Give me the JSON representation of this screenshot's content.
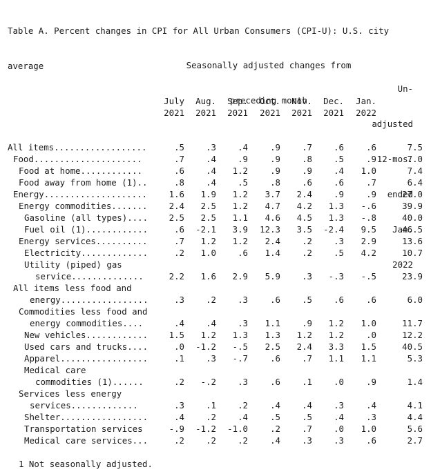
{
  "title_lines": [
    "Table A. Percent changes in CPI for All Urban Consumers (CPI-U): U.S. city",
    "average"
  ],
  "sa_header_lines": [
    "Seasonally adjusted changes from",
    "preceding month"
  ],
  "month_columns": [
    {
      "month": "July",
      "year": "2021"
    },
    {
      "month": "Aug.",
      "year": "2021"
    },
    {
      "month": "Sep.",
      "year": "2021"
    },
    {
      "month": "Oct.",
      "year": "2021"
    },
    {
      "month": "Nov.",
      "year": "2021"
    },
    {
      "month": "Dec.",
      "year": "2021"
    },
    {
      "month": "Jan.",
      "year": "2022"
    }
  ],
  "unadjusted_header_lines": [
    "Un-",
    "adjusted",
    "12-mos.",
    "ended",
    "Jan.",
    "2022"
  ],
  "rows": [
    {
      "label": "All items..................",
      "indent": 0,
      "values": [
        ".5",
        ".3",
        ".4",
        ".9",
        ".7",
        ".6",
        ".6",
        "7.5"
      ]
    },
    {
      "label": "Food.....................",
      "indent": 1,
      "values": [
        ".7",
        ".4",
        ".9",
        ".9",
        ".8",
        ".5",
        ".9",
        "7.0"
      ]
    },
    {
      "label": "Food at home............",
      "indent": 2,
      "values": [
        ".6",
        ".4",
        "1.2",
        ".9",
        ".9",
        ".4",
        "1.0",
        "7.4"
      ]
    },
    {
      "label": "Food away from home (1)..",
      "indent": 2,
      "values": [
        ".8",
        ".4",
        ".5",
        ".8",
        ".6",
        ".6",
        ".7",
        "6.4"
      ]
    },
    {
      "label": "Energy....................",
      "indent": 1,
      "values": [
        "1.6",
        "1.9",
        "1.2",
        "3.7",
        "2.4",
        ".9",
        ".9",
        "27.0"
      ]
    },
    {
      "label": "Energy commodities.......",
      "indent": 2,
      "values": [
        "2.4",
        "2.5",
        "1.2",
        "4.7",
        "4.2",
        "1.3",
        "-.6",
        "39.9"
      ]
    },
    {
      "label": "Gasoline (all types)....",
      "indent": 3,
      "values": [
        "2.5",
        "2.5",
        "1.1",
        "4.6",
        "4.5",
        "1.3",
        "-.8",
        "40.0"
      ]
    },
    {
      "label": "Fuel oil (1)............",
      "indent": 3,
      "values": [
        ".6",
        "-2.1",
        "3.9",
        "12.3",
        "3.5",
        "-2.4",
        "9.5",
        "46.5"
      ]
    },
    {
      "label": "Energy services..........",
      "indent": 2,
      "values": [
        ".7",
        "1.2",
        "1.2",
        "2.4",
        ".2",
        ".3",
        "2.9",
        "13.6"
      ]
    },
    {
      "label": "Electricity.............",
      "indent": 3,
      "values": [
        ".2",
        "1.0",
        ".6",
        "1.4",
        ".2",
        ".5",
        "4.2",
        "10.7"
      ]
    },
    {
      "label": "Utility (piped) gas",
      "indent": 3,
      "values": []
    },
    {
      "label": "service..............",
      "indent": 5,
      "values": [
        "2.2",
        "1.6",
        "2.9",
        "5.9",
        ".3",
        "-.3",
        "-.5",
        "23.9"
      ]
    },
    {
      "label": "All items less food and",
      "indent": 1,
      "values": []
    },
    {
      "label": "energy.................",
      "indent": 4,
      "values": [
        ".3",
        ".2",
        ".3",
        ".6",
        ".5",
        ".6",
        ".6",
        "6.0"
      ]
    },
    {
      "label": "Commodities less food and",
      "indent": 2,
      "values": []
    },
    {
      "label": "energy commodities....",
      "indent": 4,
      "values": [
        ".4",
        ".4",
        ".3",
        "1.1",
        ".9",
        "1.2",
        "1.0",
        "11.7"
      ]
    },
    {
      "label": "New vehicles............",
      "indent": 3,
      "values": [
        "1.5",
        "1.2",
        "1.3",
        "1.3",
        "1.2",
        "1.2",
        ".0",
        "12.2"
      ]
    },
    {
      "label": "Used cars and trucks....",
      "indent": 3,
      "values": [
        ".0",
        "-1.2",
        "-.5",
        "2.5",
        "2.4",
        "3.3",
        "1.5",
        "40.5"
      ]
    },
    {
      "label": "Apparel.................",
      "indent": 3,
      "values": [
        ".1",
        ".3",
        "-.7",
        ".6",
        ".7",
        "1.1",
        "1.1",
        "5.3"
      ]
    },
    {
      "label": "Medical care",
      "indent": 3,
      "values": []
    },
    {
      "label": "commodities (1)......",
      "indent": 5,
      "values": [
        ".2",
        "-.2",
        ".3",
        ".6",
        ".1",
        ".0",
        ".9",
        "1.4"
      ]
    },
    {
      "label": "Services less energy",
      "indent": 2,
      "values": []
    },
    {
      "label": "services.............",
      "indent": 4,
      "values": [
        ".3",
        ".1",
        ".2",
        ".4",
        ".4",
        ".3",
        ".4",
        "4.1"
      ]
    },
    {
      "label": "Shelter.................",
      "indent": 3,
      "values": [
        ".4",
        ".2",
        ".4",
        ".5",
        ".5",
        ".4",
        ".3",
        "4.4"
      ]
    },
    {
      "label": "Transportation services",
      "indent": 3,
      "values": [
        "-.9",
        "-1.2",
        "-1.0",
        ".2",
        ".7",
        ".0",
        "1.0",
        "5.6"
      ]
    },
    {
      "label": "Medical care services...",
      "indent": 3,
      "values": [
        ".2",
        ".2",
        ".2",
        ".4",
        ".3",
        ".3",
        ".6",
        "2.7"
      ]
    }
  ],
  "footnote": "1 Not seasonally adjusted."
}
